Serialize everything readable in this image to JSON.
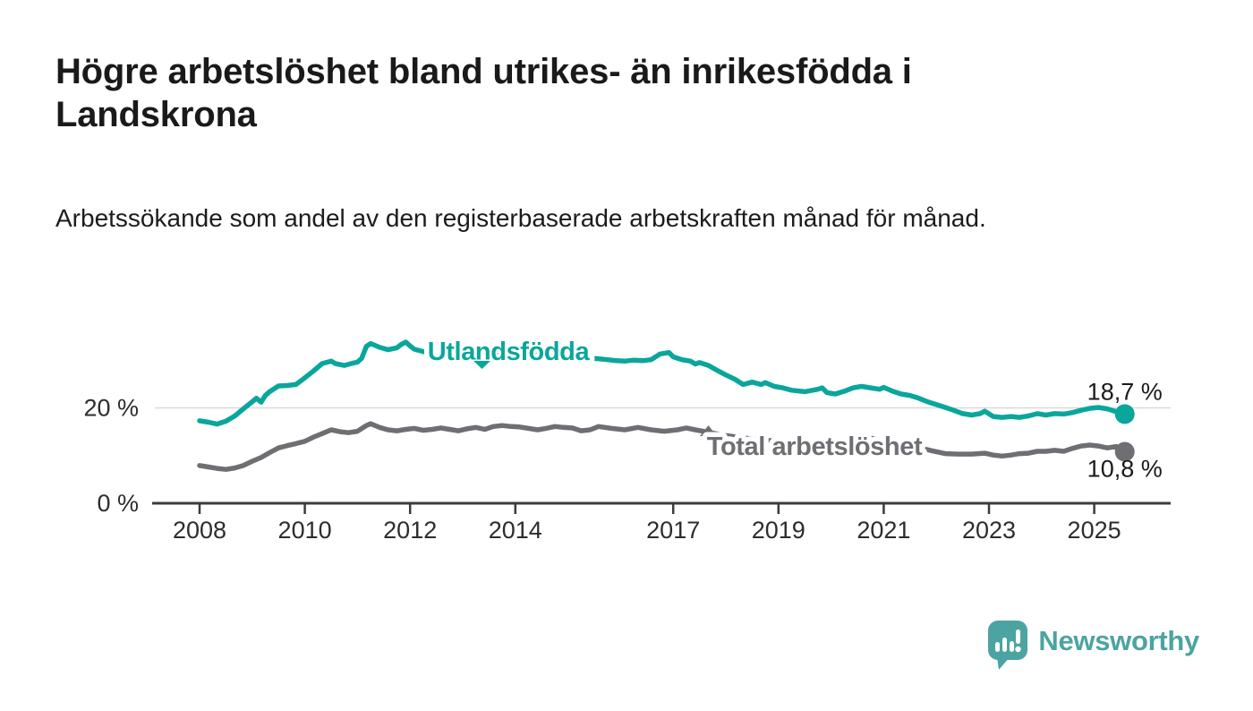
{
  "header": {
    "title": "Högre arbetslöshet bland utrikes- än inrikesfödda i Landskrona",
    "subtitle": "Arbetssökande som andel av den registerbaserade arbetskraften månad för månad."
  },
  "footer": {
    "brand": "Newsworthy"
  },
  "colors": {
    "teal_line": "#0aa69b",
    "gray_line": "#6f6e73",
    "axis": "#3b3b3b",
    "gridline": "#d9d9d9",
    "brand_teal": "#4ba4a1"
  },
  "chart_data": {
    "type": "line",
    "title": "Högre arbetslöshet bland utrikes- än inrikesfödda i Landskrona",
    "xlabel": "",
    "ylabel": "",
    "unit": "%",
    "grid": "y-at-20-only",
    "legend_position": "labels-on-lines",
    "x_range": [
      2007.1,
      2026.5
    ],
    "ylim": [
      0,
      37
    ],
    "x_ticks": [
      {
        "year": 2008,
        "label": "2008"
      },
      {
        "year": 2010,
        "label": "2010"
      },
      {
        "year": 2012,
        "label": "2012"
      },
      {
        "year": 2014,
        "label": "2014"
      },
      {
        "year": 2017,
        "label": "2017"
      },
      {
        "year": 2019,
        "label": "2019"
      },
      {
        "year": 2021,
        "label": "2021"
      },
      {
        "year": 2023,
        "label": "2023"
      },
      {
        "year": 2025,
        "label": "2025"
      }
    ],
    "y_ticks": [
      {
        "value": 0,
        "label": "0 %"
      },
      {
        "value": 20,
        "label": "20 %"
      }
    ],
    "series": [
      {
        "id": "utlandsfodda",
        "name": "Utlandsfödda",
        "color": "#0aa69b",
        "end_label": "18,7 %",
        "end_value": 18.7,
        "points": [
          [
            2008.0,
            17.3
          ],
          [
            2008.17,
            17.0
          ],
          [
            2008.33,
            16.6
          ],
          [
            2008.5,
            17.2
          ],
          [
            2008.67,
            18.3
          ],
          [
            2008.83,
            19.8
          ],
          [
            2009.0,
            21.3
          ],
          [
            2009.08,
            22.0
          ],
          [
            2009.17,
            21.2
          ],
          [
            2009.25,
            22.6
          ],
          [
            2009.33,
            23.4
          ],
          [
            2009.5,
            24.6
          ],
          [
            2009.67,
            24.7
          ],
          [
            2009.83,
            24.9
          ],
          [
            2010.0,
            26.3
          ],
          [
            2010.17,
            27.8
          ],
          [
            2010.33,
            29.3
          ],
          [
            2010.5,
            29.8
          ],
          [
            2010.58,
            29.3
          ],
          [
            2010.75,
            28.9
          ],
          [
            2010.92,
            29.4
          ],
          [
            2011.0,
            29.6
          ],
          [
            2011.08,
            30.4
          ],
          [
            2011.17,
            32.9
          ],
          [
            2011.25,
            33.5
          ],
          [
            2011.42,
            32.7
          ],
          [
            2011.58,
            32.2
          ],
          [
            2011.75,
            32.6
          ],
          [
            2011.83,
            33.3
          ],
          [
            2011.92,
            33.8
          ],
          [
            2012.0,
            33.0
          ],
          [
            2012.08,
            32.3
          ],
          [
            2012.25,
            31.8
          ],
          [
            2012.42,
            31.5
          ],
          [
            2012.58,
            31.9
          ],
          [
            2012.75,
            32.1
          ],
          [
            2012.92,
            31.8
          ],
          [
            2013.08,
            32.3
          ],
          [
            2013.25,
            32.5
          ],
          [
            2013.42,
            32.0
          ],
          [
            2013.58,
            31.7
          ],
          [
            2013.75,
            31.9
          ],
          [
            2013.92,
            31.3
          ],
          [
            2014.08,
            31.2
          ],
          [
            2014.25,
            31.4
          ],
          [
            2014.42,
            30.9
          ],
          [
            2014.58,
            30.7
          ],
          [
            2014.75,
            30.9
          ],
          [
            2014.92,
            30.4
          ],
          [
            2015.08,
            30.5
          ],
          [
            2015.25,
            30.2
          ],
          [
            2015.42,
            30.4
          ],
          [
            2015.58,
            30.3
          ],
          [
            2015.75,
            30.1
          ],
          [
            2015.92,
            29.9
          ],
          [
            2016.08,
            29.8
          ],
          [
            2016.25,
            30.0
          ],
          [
            2016.42,
            29.9
          ],
          [
            2016.58,
            30.1
          ],
          [
            2016.75,
            31.3
          ],
          [
            2016.92,
            31.6
          ],
          [
            2017.0,
            30.7
          ],
          [
            2017.17,
            30.1
          ],
          [
            2017.33,
            29.8
          ],
          [
            2017.42,
            29.2
          ],
          [
            2017.5,
            29.5
          ],
          [
            2017.67,
            28.9
          ],
          [
            2017.83,
            27.9
          ],
          [
            2018.0,
            26.9
          ],
          [
            2018.17,
            26.0
          ],
          [
            2018.33,
            24.9
          ],
          [
            2018.5,
            25.4
          ],
          [
            2018.67,
            24.9
          ],
          [
            2018.75,
            25.3
          ],
          [
            2018.92,
            24.5
          ],
          [
            2019.08,
            24.2
          ],
          [
            2019.25,
            23.7
          ],
          [
            2019.5,
            23.4
          ],
          [
            2019.75,
            23.9
          ],
          [
            2019.83,
            24.2
          ],
          [
            2019.92,
            23.2
          ],
          [
            2020.08,
            22.9
          ],
          [
            2020.25,
            23.5
          ],
          [
            2020.42,
            24.2
          ],
          [
            2020.58,
            24.5
          ],
          [
            2020.75,
            24.2
          ],
          [
            2020.92,
            23.9
          ],
          [
            2021.0,
            24.3
          ],
          [
            2021.17,
            23.5
          ],
          [
            2021.33,
            22.9
          ],
          [
            2021.5,
            22.6
          ],
          [
            2021.67,
            22.0
          ],
          [
            2021.83,
            21.3
          ],
          [
            2022.0,
            20.7
          ],
          [
            2022.17,
            20.1
          ],
          [
            2022.33,
            19.5
          ],
          [
            2022.5,
            18.8
          ],
          [
            2022.67,
            18.5
          ],
          [
            2022.83,
            18.8
          ],
          [
            2022.92,
            19.3
          ],
          [
            2023.08,
            18.2
          ],
          [
            2023.25,
            18.0
          ],
          [
            2023.42,
            18.2
          ],
          [
            2023.58,
            18.0
          ],
          [
            2023.75,
            18.3
          ],
          [
            2023.92,
            18.8
          ],
          [
            2024.08,
            18.5
          ],
          [
            2024.25,
            18.8
          ],
          [
            2024.42,
            18.7
          ],
          [
            2024.58,
            19.0
          ],
          [
            2024.75,
            19.5
          ],
          [
            2024.92,
            19.9
          ],
          [
            2025.08,
            20.1
          ],
          [
            2025.25,
            19.8
          ],
          [
            2025.42,
            19.2
          ],
          [
            2025.58,
            18.7
          ]
        ]
      },
      {
        "id": "total-arbetsloshet",
        "name": "Total arbetslöshet",
        "color": "#6f6e73",
        "end_label": "10,8 %",
        "end_value": 10.8,
        "points": [
          [
            2008.0,
            7.9
          ],
          [
            2008.17,
            7.6
          ],
          [
            2008.33,
            7.3
          ],
          [
            2008.5,
            7.1
          ],
          [
            2008.67,
            7.4
          ],
          [
            2008.83,
            7.9
          ],
          [
            2009.0,
            8.8
          ],
          [
            2009.17,
            9.6
          ],
          [
            2009.33,
            10.6
          ],
          [
            2009.5,
            11.6
          ],
          [
            2009.67,
            12.1
          ],
          [
            2009.83,
            12.5
          ],
          [
            2010.0,
            13.0
          ],
          [
            2010.17,
            13.9
          ],
          [
            2010.33,
            14.6
          ],
          [
            2010.5,
            15.4
          ],
          [
            2010.67,
            15.0
          ],
          [
            2010.83,
            14.8
          ],
          [
            2011.0,
            15.1
          ],
          [
            2011.17,
            16.3
          ],
          [
            2011.25,
            16.7
          ],
          [
            2011.42,
            15.9
          ],
          [
            2011.58,
            15.4
          ],
          [
            2011.75,
            15.2
          ],
          [
            2011.92,
            15.5
          ],
          [
            2012.08,
            15.7
          ],
          [
            2012.25,
            15.3
          ],
          [
            2012.42,
            15.5
          ],
          [
            2012.58,
            15.8
          ],
          [
            2012.75,
            15.5
          ],
          [
            2012.92,
            15.2
          ],
          [
            2013.08,
            15.6
          ],
          [
            2013.25,
            15.9
          ],
          [
            2013.42,
            15.5
          ],
          [
            2013.58,
            16.1
          ],
          [
            2013.75,
            16.3
          ],
          [
            2013.92,
            16.1
          ],
          [
            2014.08,
            16.0
          ],
          [
            2014.25,
            15.7
          ],
          [
            2014.42,
            15.4
          ],
          [
            2014.58,
            15.7
          ],
          [
            2014.75,
            16.1
          ],
          [
            2014.92,
            15.9
          ],
          [
            2015.08,
            15.8
          ],
          [
            2015.25,
            15.2
          ],
          [
            2015.42,
            15.4
          ],
          [
            2015.58,
            16.1
          ],
          [
            2015.83,
            15.7
          ],
          [
            2016.08,
            15.4
          ],
          [
            2016.33,
            15.9
          ],
          [
            2016.58,
            15.4
          ],
          [
            2016.83,
            15.1
          ],
          [
            2017.08,
            15.4
          ],
          [
            2017.25,
            15.8
          ],
          [
            2017.42,
            15.4
          ],
          [
            2017.67,
            14.9
          ],
          [
            2018.0,
            14.2
          ],
          [
            2018.33,
            13.7
          ],
          [
            2018.67,
            13.3
          ],
          [
            2019.0,
            13.0
          ],
          [
            2019.33,
            12.7
          ],
          [
            2019.67,
            12.5
          ],
          [
            2020.0,
            12.7
          ],
          [
            2020.33,
            13.6
          ],
          [
            2020.58,
            13.9
          ],
          [
            2020.92,
            13.4
          ],
          [
            2021.25,
            12.7
          ],
          [
            2021.58,
            11.9
          ],
          [
            2021.92,
            11.0
          ],
          [
            2022.17,
            10.4
          ],
          [
            2022.42,
            10.3
          ],
          [
            2022.67,
            10.3
          ],
          [
            2022.92,
            10.5
          ],
          [
            2023.08,
            10.1
          ],
          [
            2023.25,
            9.9
          ],
          [
            2023.42,
            10.1
          ],
          [
            2023.58,
            10.4
          ],
          [
            2023.75,
            10.5
          ],
          [
            2023.92,
            10.9
          ],
          [
            2024.08,
            10.9
          ],
          [
            2024.25,
            11.1
          ],
          [
            2024.42,
            10.9
          ],
          [
            2024.58,
            11.5
          ],
          [
            2024.75,
            12.0
          ],
          [
            2024.92,
            12.2
          ],
          [
            2025.08,
            12.0
          ],
          [
            2025.25,
            11.6
          ],
          [
            2025.42,
            11.9
          ],
          [
            2025.5,
            11.2
          ],
          [
            2025.58,
            10.8
          ]
        ]
      }
    ]
  }
}
